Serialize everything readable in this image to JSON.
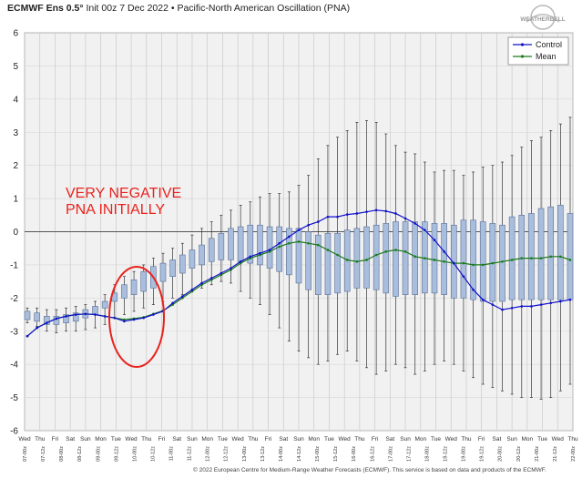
{
  "title": {
    "model": "ECMWF Ens 0.5°",
    "details": "Init 00z 7 Dec 2022 • Pacific-North American Oscillation (PNA)"
  },
  "copyright": "© 2022 European Centre for Medium-Range Weather Forecasts (ECMWF). This service is based on data and products of the ECMWF.",
  "annotation": "VERY NEGATIVE\nPNA INITIALLY",
  "logo_text": "WEATHERBELL",
  "colors": {
    "control": "#1010cc",
    "mean": "#1a7a1a",
    "box_fill": "#a9bedc",
    "box_stroke": "#5a6e96",
    "annotation": "#e8231e",
    "plot_bg": "#f1f1f1"
  },
  "chart_data": {
    "type": "box",
    "ylim": [
      -6,
      6
    ],
    "yticks": [
      -6,
      -5,
      -4,
      -3,
      -2,
      -1,
      0,
      1,
      2,
      3,
      4,
      5,
      6
    ],
    "legend_position": "top-right",
    "legend": [
      "Control",
      "Mean"
    ],
    "day_labels": [
      "Wed",
      "Thu",
      "Fri",
      "Sat",
      "Sun",
      "Mon",
      "Tue",
      "Wed",
      "Thu",
      "Fri",
      "Sat",
      "Sun",
      "Mon",
      "Tue",
      "Wed",
      "Thu",
      "Fri",
      "Sat",
      "Sun",
      "Mon",
      "Tue",
      "Wed",
      "Thu",
      "Fri",
      "Sat",
      "Sun",
      "Mon",
      "Tue",
      "Wed",
      "Thu",
      "Fri",
      "Sat",
      "Sun",
      "Mon",
      "Tue",
      "Wed",
      "Thu"
    ],
    "date_labels": [
      "07-00z",
      "07-12z",
      "08-00z",
      "08-12z",
      "09-00z",
      "09-12z",
      "10-00z",
      "10-12z",
      "11-00z",
      "11-12z",
      "12-00z",
      "12-12z",
      "13-00z",
      "13-12z",
      "14-00z",
      "14-12z",
      "15-00z",
      "15-12z",
      "16-00z",
      "16-12z",
      "17-00z",
      "17-12z",
      "18-00z",
      "18-12z",
      "19-00z",
      "19-12z",
      "20-00z",
      "20-12z",
      "21-00z",
      "21-12z",
      "22-00z"
    ],
    "control": [
      -3.15,
      -2.9,
      -2.75,
      -2.62,
      -2.55,
      -2.5,
      -2.48,
      -2.5,
      -2.55,
      -2.6,
      -2.7,
      -2.65,
      -2.6,
      -2.5,
      -2.4,
      -2.15,
      -1.95,
      -1.75,
      -1.55,
      -1.4,
      -1.25,
      -1.1,
      -0.9,
      -0.75,
      -0.65,
      -0.55,
      -0.35,
      -0.15,
      0.05,
      0.2,
      0.3,
      0.45,
      0.45,
      0.52,
      0.55,
      0.6,
      0.65,
      0.62,
      0.55,
      0.4,
      0.25,
      0.05,
      -0.25,
      -0.6,
      -0.95,
      -1.35,
      -1.75,
      -2.05,
      -2.2,
      -2.35,
      -2.3,
      -2.25,
      -2.25,
      -2.2,
      -2.15,
      -2.1,
      -2.05
    ],
    "mean": [
      -3.15,
      -2.9,
      -2.75,
      -2.62,
      -2.55,
      -2.5,
      -2.48,
      -2.5,
      -2.55,
      -2.6,
      -2.65,
      -2.62,
      -2.58,
      -2.48,
      -2.38,
      -2.2,
      -2.0,
      -1.8,
      -1.6,
      -1.45,
      -1.3,
      -1.15,
      -0.95,
      -0.8,
      -0.7,
      -0.6,
      -0.45,
      -0.35,
      -0.3,
      -0.35,
      -0.4,
      -0.55,
      -0.7,
      -0.85,
      -0.9,
      -0.85,
      -0.7,
      -0.6,
      -0.55,
      -0.6,
      -0.75,
      -0.8,
      -0.85,
      -0.9,
      -0.95,
      -0.95,
      -1.0,
      -1.0,
      -0.95,
      -0.9,
      -0.85,
      -0.8,
      -0.8,
      -0.8,
      -0.75,
      -0.75,
      -0.85
    ],
    "boxes": [
      {
        "q1": -2.65,
        "q3": -2.4,
        "min": -2.75,
        "max": -2.3
      },
      {
        "q1": -2.7,
        "q3": -2.45,
        "min": -2.85,
        "max": -2.3
      },
      {
        "q1": -2.8,
        "q3": -2.55,
        "min": -3.0,
        "max": -2.35
      },
      {
        "q1": -2.8,
        "q3": -2.55,
        "min": -3.05,
        "max": -2.35
      },
      {
        "q1": -2.75,
        "q3": -2.5,
        "min": -3.0,
        "max": -2.3
      },
      {
        "q1": -2.7,
        "q3": -2.45,
        "min": -3.0,
        "max": -2.25
      },
      {
        "q1": -2.6,
        "q3": -2.35,
        "min": -2.95,
        "max": -2.2
      },
      {
        "q1": -2.5,
        "q3": -2.25,
        "min": -2.9,
        "max": -2.1
      },
      {
        "q1": -2.3,
        "q3": -2.1,
        "min": -2.8,
        "max": -1.9
      },
      {
        "q1": -2.1,
        "q3": -1.85,
        "min": -2.6,
        "max": -1.6
      },
      {
        "q1": -2.0,
        "q3": -1.6,
        "min": -2.5,
        "max": -1.35
      },
      {
        "q1": -1.9,
        "q3": -1.45,
        "min": -2.4,
        "max": -1.2
      },
      {
        "q1": -1.8,
        "q3": -1.2,
        "min": -2.3,
        "max": -1.0
      },
      {
        "q1": -1.7,
        "q3": -1.05,
        "min": -2.2,
        "max": -0.8
      },
      {
        "q1": -1.5,
        "q3": -0.95,
        "min": -2.1,
        "max": -0.65
      },
      {
        "q1": -1.35,
        "q3": -0.85,
        "min": -2.0,
        "max": -0.5
      },
      {
        "q1": -1.25,
        "q3": -0.7,
        "min": -1.9,
        "max": -0.35
      },
      {
        "q1": -1.1,
        "q3": -0.55,
        "min": -1.8,
        "max": -0.1
      },
      {
        "q1": -1.0,
        "q3": -0.4,
        "min": -1.7,
        "max": 0.1
      },
      {
        "q1": -0.9,
        "q3": -0.2,
        "min": -1.6,
        "max": 0.3
      },
      {
        "q1": -0.85,
        "q3": -0.05,
        "min": -1.5,
        "max": 0.5
      },
      {
        "q1": -0.85,
        "q3": 0.1,
        "min": -1.55,
        "max": 0.65
      },
      {
        "q1": -0.9,
        "q3": 0.15,
        "min": -1.8,
        "max": 0.8
      },
      {
        "q1": -0.95,
        "q3": 0.2,
        "min": -2.0,
        "max": 0.9
      },
      {
        "q1": -1.0,
        "q3": 0.2,
        "min": -2.2,
        "max": 1.05
      },
      {
        "q1": -1.1,
        "q3": 0.15,
        "min": -2.5,
        "max": 1.15
      },
      {
        "q1": -1.2,
        "q3": 0.15,
        "min": -2.9,
        "max": 1.15
      },
      {
        "q1": -1.3,
        "q3": 0.1,
        "min": -3.3,
        "max": 1.2
      },
      {
        "q1": -1.55,
        "q3": 0.1,
        "min": -3.6,
        "max": 1.4
      },
      {
        "q1": -1.75,
        "q3": 0.0,
        "min": -3.8,
        "max": 1.7
      },
      {
        "q1": -1.9,
        "q3": -0.1,
        "min": -4.0,
        "max": 2.2
      },
      {
        "q1": -1.9,
        "q3": -0.05,
        "min": -3.9,
        "max": 2.6
      },
      {
        "q1": -1.85,
        "q3": -0.05,
        "min": -3.7,
        "max": 2.85
      },
      {
        "q1": -1.8,
        "q3": 0.05,
        "min": -3.6,
        "max": 3.05
      },
      {
        "q1": -1.7,
        "q3": 0.1,
        "min": -3.9,
        "max": 3.3
      },
      {
        "q1": -1.7,
        "q3": 0.15,
        "min": -4.1,
        "max": 3.35
      },
      {
        "q1": -1.75,
        "q3": 0.2,
        "min": -4.3,
        "max": 3.3
      },
      {
        "q1": -1.85,
        "q3": 0.25,
        "min": -4.2,
        "max": 2.95
      },
      {
        "q1": -1.95,
        "q3": 0.3,
        "min": -4.0,
        "max": 2.6
      },
      {
        "q1": -1.9,
        "q3": 0.3,
        "min": -4.1,
        "max": 2.4
      },
      {
        "q1": -1.9,
        "q3": 0.3,
        "min": -4.3,
        "max": 2.35
      },
      {
        "q1": -1.85,
        "q3": 0.3,
        "min": -4.2,
        "max": 2.1
      },
      {
        "q1": -1.85,
        "q3": 0.25,
        "min": -4.0,
        "max": 1.8
      },
      {
        "q1": -1.9,
        "q3": 0.25,
        "min": -3.9,
        "max": 1.85
      },
      {
        "q1": -2.0,
        "q3": 0.2,
        "min": -4.0,
        "max": 1.85
      },
      {
        "q1": -2.0,
        "q3": 0.35,
        "min": -4.2,
        "max": 1.7
      },
      {
        "q1": -2.05,
        "q3": 0.35,
        "min": -4.4,
        "max": 1.8
      },
      {
        "q1": -2.1,
        "q3": 0.3,
        "min": -4.6,
        "max": 1.95
      },
      {
        "q1": -2.1,
        "q3": 0.25,
        "min": -4.7,
        "max": 2.0
      },
      {
        "q1": -2.1,
        "q3": 0.2,
        "min": -4.8,
        "max": 2.1
      },
      {
        "q1": -2.05,
        "q3": 0.45,
        "min": -4.9,
        "max": 2.3
      },
      {
        "q1": -2.05,
        "q3": 0.5,
        "min": -5.0,
        "max": 2.55
      },
      {
        "q1": -2.05,
        "q3": 0.55,
        "min": -5.0,
        "max": 2.75
      },
      {
        "q1": -2.05,
        "q3": 0.7,
        "min": -5.05,
        "max": 2.85
      },
      {
        "q1": -2.05,
        "q3": 0.75,
        "min": -5.0,
        "max": 3.05
      },
      {
        "q1": -2.05,
        "q3": 0.8,
        "min": -4.8,
        "max": 3.25
      },
      {
        "q1": -2.05,
        "q3": 0.55,
        "min": -4.6,
        "max": 3.45
      }
    ]
  }
}
